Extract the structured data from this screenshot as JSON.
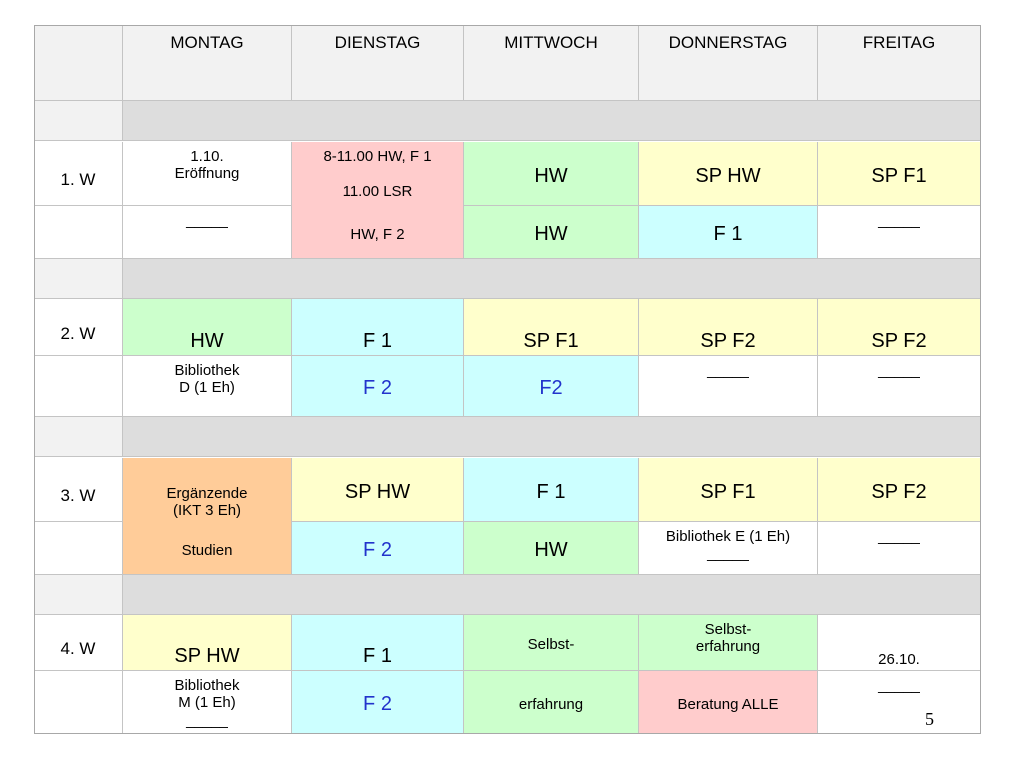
{
  "colors": {
    "header": "#f2f2f2",
    "separator": "#dddddd",
    "label": "#f2f2f2",
    "white": "#ffffff",
    "green": "#ccffcc",
    "yellow": "#ffffcc",
    "cyan": "#ccffff",
    "pink": "#ffcccc",
    "orange": "#ffcc99",
    "blue_text": "#2233cc"
  },
  "days": [
    "MONTAG",
    "DIENSTAG",
    "MITTWOCH",
    "DONNERSTAG",
    "FREITAG"
  ],
  "weeks": [
    {
      "label": "1. W",
      "top": [
        {
          "color": "white",
          "lines": [
            "1.10.",
            "Eröffnung"
          ],
          "size": "small",
          "valign": "top"
        },
        {
          "color": "pink",
          "lines": [
            "8-11.00 HW, F 1",
            "",
            "11.00 LSR"
          ],
          "size": "small",
          "valign": "top",
          "span": 2,
          "extra_lines": [
            "HW, F 2"
          ]
        },
        {
          "color": "green",
          "lines": [
            "HW"
          ],
          "size": "large"
        },
        {
          "color": "yellow",
          "lines": [
            "SP HW"
          ],
          "size": "large"
        },
        {
          "color": "yellow",
          "lines": [
            "SP F1"
          ],
          "size": "large"
        }
      ],
      "bottom": [
        {
          "color": "white",
          "lines": [
            "_____"
          ],
          "size": "small",
          "valign": "top"
        },
        null,
        {
          "color": "green",
          "lines": [
            "HW"
          ],
          "size": "large"
        },
        {
          "color": "cyan",
          "lines": [
            "F 1"
          ],
          "size": "large"
        },
        {
          "color": "white",
          "lines": [
            "_____"
          ],
          "size": "small",
          "valign": "top"
        }
      ]
    },
    {
      "label": "2. W",
      "top": [
        {
          "color": "green",
          "lines": [
            "HW"
          ],
          "size": "large",
          "valign": "bottom"
        },
        {
          "color": "cyan",
          "lines": [
            "F 1"
          ],
          "size": "large",
          "valign": "bottom"
        },
        {
          "color": "yellow",
          "lines": [
            "SP F1"
          ],
          "size": "large",
          "valign": "bottom"
        },
        {
          "color": "yellow",
          "lines": [
            "SP F2"
          ],
          "size": "large",
          "valign": "bottom"
        },
        {
          "color": "yellow",
          "lines": [
            "SP F2"
          ],
          "size": "large",
          "valign": "bottom"
        }
      ],
      "bottom": [
        {
          "color": "white",
          "lines": [
            "Bibliothek",
            "D (1 Eh)"
          ],
          "size": "small",
          "valign": "top"
        },
        {
          "color": "cyan",
          "lines": [
            "F 2"
          ],
          "size": "large",
          "blue": true
        },
        {
          "color": "cyan",
          "lines": [
            "F2"
          ],
          "size": "large",
          "blue": true
        },
        {
          "color": "white",
          "lines": [
            "_____"
          ],
          "size": "small",
          "valign": "top"
        },
        {
          "color": "white",
          "lines": [
            "_____"
          ],
          "size": "small",
          "valign": "top"
        }
      ]
    },
    {
      "label": "3. W",
      "top": [
        {
          "color": "orange",
          "lines": [
            "Ergänzende",
            "(IKT 3 Eh)"
          ],
          "size": "small",
          "valign": "bottom",
          "span": 2,
          "extra_lines": [
            "Studien"
          ]
        },
        {
          "color": "yellow",
          "lines": [
            "SP HW"
          ],
          "size": "large"
        },
        {
          "color": "cyan",
          "lines": [
            "F 1"
          ],
          "size": "large"
        },
        {
          "color": "yellow",
          "lines": [
            "SP F1"
          ],
          "size": "large"
        },
        {
          "color": "yellow",
          "lines": [
            "SP F2"
          ],
          "size": "large"
        }
      ],
      "bottom": [
        null,
        {
          "color": "cyan",
          "lines": [
            "F 2"
          ],
          "size": "large",
          "blue": true
        },
        {
          "color": "green",
          "lines": [
            "HW"
          ],
          "size": "large"
        },
        {
          "color": "white",
          "lines": [
            "Bibliothek E (1 Eh)",
            "_____"
          ],
          "size": "small",
          "valign": "top"
        },
        {
          "color": "white",
          "lines": [
            "_____"
          ],
          "size": "small",
          "valign": "top"
        }
      ]
    },
    {
      "label": "4. W",
      "top": [
        {
          "color": "yellow",
          "lines": [
            "SP HW"
          ],
          "size": "large",
          "valign": "bottom"
        },
        {
          "color": "cyan",
          "lines": [
            "F 1"
          ],
          "size": "large",
          "valign": "bottom"
        },
        {
          "color": "green",
          "lines": [
            "Selbst-"
          ],
          "size": "small"
        },
        {
          "color": "green",
          "lines": [
            "Selbst-",
            "erfahrung"
          ],
          "size": "small",
          "valign": "top"
        },
        {
          "color": "white",
          "lines": [
            "26.10."
          ],
          "size": "small",
          "valign": "bottom"
        }
      ],
      "bottom": [
        {
          "color": "white",
          "lines": [
            "Bibliothek",
            "M (1 Eh)",
            "_____"
          ],
          "size": "small",
          "valign": "top"
        },
        {
          "color": "cyan",
          "lines": [
            "F 2"
          ],
          "size": "large",
          "blue": true
        },
        {
          "color": "green",
          "lines": [
            "erfahrung"
          ],
          "size": "small"
        },
        {
          "color": "pink",
          "lines": [
            "Beratung ALLE"
          ],
          "size": "small"
        },
        {
          "color": "white",
          "lines": [
            "_____"
          ],
          "size": "small",
          "valign": "top"
        }
      ]
    }
  ],
  "page_number": "5"
}
